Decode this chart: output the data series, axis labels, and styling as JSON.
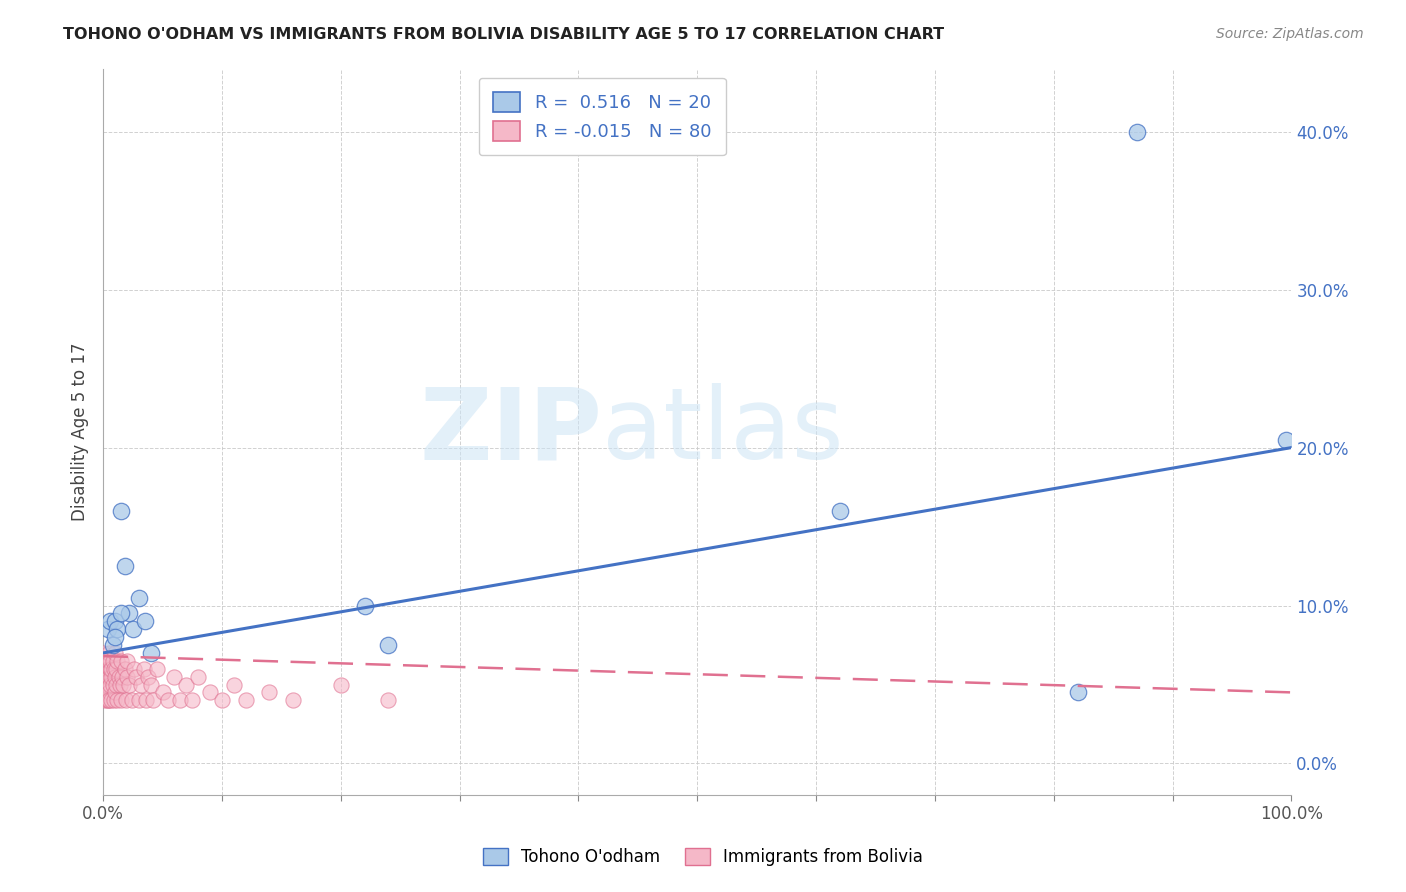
{
  "title": "TOHONO O'ODHAM VS IMMIGRANTS FROM BOLIVIA DISABILITY AGE 5 TO 17 CORRELATION CHART",
  "source": "Source: ZipAtlas.com",
  "ylabel": "Disability Age 5 to 17",
  "legend_label1": "Tohono O'odham",
  "legend_label2": "Immigrants from Bolivia",
  "R1": 0.516,
  "N1": 20,
  "R2": -0.015,
  "N2": 80,
  "color1": "#aac9e8",
  "color2": "#f5b8c8",
  "line_color1": "#4472c4",
  "line_color2": "#e07090",
  "xmin": 0.0,
  "xmax": 1.0,
  "ymin": -0.02,
  "ymax": 0.44,
  "blue_points_x": [
    0.004,
    0.006,
    0.008,
    0.01,
    0.012,
    0.015,
    0.018,
    0.022,
    0.025,
    0.03,
    0.22,
    0.24,
    0.62,
    0.82,
    0.87,
    0.995,
    0.035,
    0.04,
    0.01,
    0.015
  ],
  "blue_points_y": [
    0.085,
    0.09,
    0.075,
    0.09,
    0.085,
    0.16,
    0.125,
    0.095,
    0.085,
    0.105,
    0.1,
    0.075,
    0.16,
    0.045,
    0.4,
    0.205,
    0.09,
    0.07,
    0.08,
    0.095
  ],
  "pink_points_x": [
    0.0,
    0.0,
    0.0,
    0.0,
    0.001,
    0.001,
    0.001,
    0.001,
    0.001,
    0.002,
    0.002,
    0.002,
    0.002,
    0.002,
    0.003,
    0.003,
    0.003,
    0.003,
    0.004,
    0.004,
    0.004,
    0.004,
    0.005,
    0.005,
    0.005,
    0.005,
    0.006,
    0.006,
    0.006,
    0.007,
    0.007,
    0.007,
    0.008,
    0.008,
    0.009,
    0.009,
    0.01,
    0.01,
    0.01,
    0.011,
    0.011,
    0.012,
    0.012,
    0.013,
    0.014,
    0.015,
    0.015,
    0.016,
    0.017,
    0.018,
    0.019,
    0.02,
    0.02,
    0.022,
    0.024,
    0.026,
    0.028,
    0.03,
    0.032,
    0.034,
    0.036,
    0.038,
    0.04,
    0.042,
    0.045,
    0.05,
    0.055,
    0.06,
    0.065,
    0.07,
    0.075,
    0.08,
    0.09,
    0.1,
    0.11,
    0.12,
    0.14,
    0.16,
    0.2,
    0.24
  ],
  "pink_points_y": [
    0.06,
    0.065,
    0.07,
    0.055,
    0.05,
    0.06,
    0.065,
    0.04,
    0.055,
    0.06,
    0.045,
    0.065,
    0.055,
    0.05,
    0.04,
    0.055,
    0.065,
    0.06,
    0.05,
    0.04,
    0.06,
    0.065,
    0.045,
    0.055,
    0.07,
    0.04,
    0.06,
    0.05,
    0.065,
    0.04,
    0.055,
    0.06,
    0.05,
    0.065,
    0.04,
    0.06,
    0.055,
    0.07,
    0.045,
    0.05,
    0.06,
    0.04,
    0.065,
    0.055,
    0.05,
    0.04,
    0.065,
    0.055,
    0.05,
    0.06,
    0.04,
    0.055,
    0.065,
    0.05,
    0.04,
    0.06,
    0.055,
    0.04,
    0.05,
    0.06,
    0.04,
    0.055,
    0.05,
    0.04,
    0.06,
    0.045,
    0.04,
    0.055,
    0.04,
    0.05,
    0.04,
    0.055,
    0.045,
    0.04,
    0.05,
    0.04,
    0.045,
    0.04,
    0.05,
    0.04
  ],
  "blue_trend_x": [
    0.0,
    1.0
  ],
  "blue_trend_y": [
    0.07,
    0.2
  ],
  "pink_trend_x": [
    0.0,
    1.0
  ],
  "pink_trend_y": [
    0.068,
    0.045
  ],
  "watermark_zip": "ZIP",
  "watermark_atlas": "atlas",
  "background_color": "#ffffff",
  "grid_color": "#cccccc",
  "ytick_positions": [
    0.0,
    0.1,
    0.2,
    0.3,
    0.4
  ],
  "ytick_labels": [
    "0.0%",
    "10.0%",
    "20.0%",
    "30.0%",
    "40.0%"
  ],
  "xtick_positions": [
    0.0,
    0.1,
    0.2,
    0.3,
    0.4,
    0.5,
    0.6,
    0.7,
    0.8,
    0.9,
    1.0
  ],
  "xtick_show": [
    0.0,
    1.0
  ],
  "xtick_labels_show": [
    "0.0%",
    "100.0%"
  ]
}
